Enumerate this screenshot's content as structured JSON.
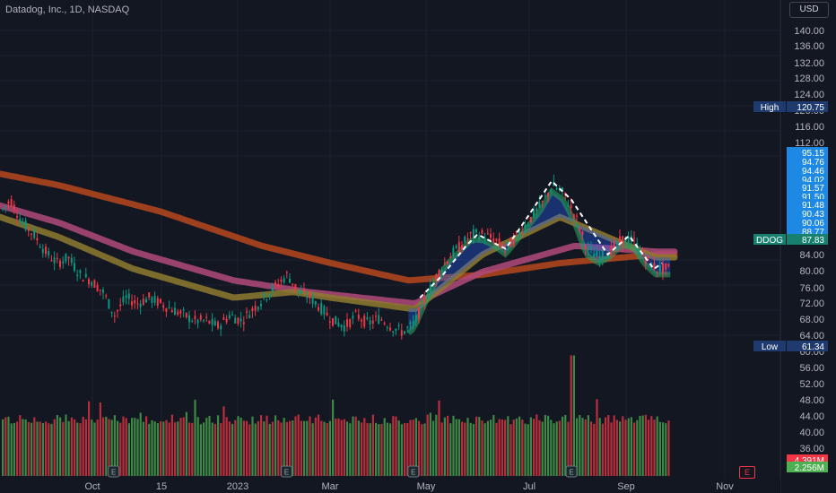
{
  "header": {
    "title": "Datadog, Inc., 1D, NASDAQ",
    "currency": "USD"
  },
  "colors": {
    "background": "#131722",
    "grid": "#1e222d",
    "axis_text": "#b2b5be",
    "up": "#089981",
    "down": "#f23645",
    "vol_up": "#4caf50",
    "vol_down": "#f23645",
    "ema_long": "#b7471d",
    "ema_mid": "#b04a7a",
    "ema_short": "#8e7a2f",
    "ribbon_bull": "#2a9d5c",
    "ribbon_bear": "#2962ff",
    "label_blue": "#1e88e5",
    "label_navy": "#1e3a6e",
    "label_teal": "#16816f"
  },
  "chart_data": {
    "type": "candlestick",
    "symbol": "DDOG",
    "interval": "1D",
    "exchange": "NASDAQ",
    "x_ticks": [
      "Oct",
      "15",
      "2023",
      "Mar",
      "May",
      "Jul",
      "Sep",
      "Nov"
    ],
    "y_ticks_price": [
      "140.00",
      "136.00",
      "132.00",
      "128.00",
      "124.00",
      "120.00",
      "116.00",
      "112.00",
      "84.00",
      "80.00",
      "76.00",
      "72.00",
      "68.00",
      "64.00",
      "60.00"
    ],
    "y_ticks_volume": [
      "56.00",
      "52.00",
      "48.00",
      "44.00",
      "40.00",
      "36.00"
    ],
    "ylim": [
      60,
      144
    ],
    "close_path": [
      [
        "2022-08-26",
        108
      ],
      [
        "2022-09-01",
        112
      ],
      [
        "2022-09-08",
        104
      ],
      [
        "2022-09-15",
        100
      ],
      [
        "2022-09-22",
        94
      ],
      [
        "2022-09-29",
        90
      ],
      [
        "2022-10-06",
        92
      ],
      [
        "2022-10-13",
        86
      ],
      [
        "2022-10-20",
        84
      ],
      [
        "2022-10-27",
        80
      ],
      [
        "2022-11-03",
        72
      ],
      [
        "2022-11-10",
        78
      ],
      [
        "2022-11-17",
        76
      ],
      [
        "2022-11-24",
        78
      ],
      [
        "2022-12-01",
        76
      ],
      [
        "2022-12-08",
        74
      ],
      [
        "2022-12-15",
        72
      ],
      [
        "2022-12-22",
        70
      ],
      [
        "2022-12-29",
        70
      ],
      [
        "2023-01-05",
        68
      ],
      [
        "2023-01-12",
        72
      ],
      [
        "2023-01-19",
        70
      ],
      [
        "2023-01-26",
        74
      ],
      [
        "2023-02-02",
        78
      ],
      [
        "2023-02-09",
        82
      ],
      [
        "2023-02-16",
        86
      ],
      [
        "2023-02-23",
        80
      ],
      [
        "2023-03-02",
        78
      ],
      [
        "2023-03-09",
        74
      ],
      [
        "2023-03-16",
        70
      ],
      [
        "2023-03-23",
        68
      ],
      [
        "2023-03-30",
        72
      ],
      [
        "2023-04-06",
        69
      ],
      [
        "2023-04-13",
        71
      ],
      [
        "2023-04-20",
        68
      ],
      [
        "2023-04-27",
        66
      ],
      [
        "2023-05-04",
        69
      ],
      [
        "2023-05-11",
        78
      ],
      [
        "2023-05-18",
        86
      ],
      [
        "2023-05-25",
        92
      ],
      [
        "2023-06-01",
        96
      ],
      [
        "2023-06-08",
        100
      ],
      [
        "2023-06-15",
        100
      ],
      [
        "2023-06-22",
        98
      ],
      [
        "2023-06-29",
        95
      ],
      [
        "2023-07-06",
        100
      ],
      [
        "2023-07-13",
        105
      ],
      [
        "2023-07-20",
        110
      ],
      [
        "2023-07-27",
        117
      ],
      [
        "2023-08-03",
        114
      ],
      [
        "2023-08-10",
        106
      ],
      [
        "2023-08-17",
        95
      ],
      [
        "2023-08-24",
        92
      ],
      [
        "2023-08-31",
        94
      ],
      [
        "2023-09-07",
        98
      ],
      [
        "2023-09-14",
        98
      ],
      [
        "2023-09-21",
        92
      ],
      [
        "2023-09-28",
        88
      ]
    ],
    "ema_lines": [
      {
        "role": "long",
        "values": [
          [
            "2022-08-26",
            121
          ],
          [
            "2022-10-01",
            117
          ],
          [
            "2022-12-01",
            108
          ],
          [
            "2023-02-01",
            96
          ],
          [
            "2023-03-15",
            90
          ],
          [
            "2023-05-01",
            84
          ],
          [
            "2023-06-15",
            86
          ],
          [
            "2023-08-01",
            90
          ],
          [
            "2023-09-28",
            93
          ]
        ]
      },
      {
        "role": "mid",
        "values": [
          [
            "2022-08-26",
            110
          ],
          [
            "2022-10-01",
            104
          ],
          [
            "2022-11-15",
            94
          ],
          [
            "2023-01-15",
            84
          ],
          [
            "2023-03-01",
            80
          ],
          [
            "2023-05-05",
            76
          ],
          [
            "2023-06-15",
            87
          ],
          [
            "2023-08-10",
            96
          ],
          [
            "2023-09-28",
            94
          ]
        ]
      },
      {
        "role": "short",
        "values": [
          [
            "2022-08-26",
            106
          ],
          [
            "2022-10-01",
            99
          ],
          [
            "2022-11-15",
            88
          ],
          [
            "2023-01-15",
            78
          ],
          [
            "2023-02-20",
            80
          ],
          [
            "2023-03-15",
            78
          ],
          [
            "2023-05-05",
            74
          ],
          [
            "2023-06-15",
            93
          ],
          [
            "2023-08-01",
            106
          ],
          [
            "2023-09-28",
            92
          ]
        ]
      }
    ],
    "volume_max_label": 58,
    "right_labels": [
      {
        "text": "High",
        "value": "120.75"
      },
      {
        "text": "",
        "value": "95.15"
      },
      {
        "text": "",
        "value": "94.76"
      },
      {
        "text": "",
        "value": "94.46"
      },
      {
        "text": "",
        "value": "94.02"
      },
      {
        "text": "",
        "value": "91.57"
      },
      {
        "text": "",
        "value": "91.50"
      },
      {
        "text": "",
        "value": "91.48"
      },
      {
        "text": "",
        "value": "90.43"
      },
      {
        "text": "",
        "value": "90.06"
      },
      {
        "text": "",
        "value": "88.77"
      },
      {
        "text": "DDOG",
        "value": "87.83"
      },
      {
        "text": "Low",
        "value": "61.34"
      },
      {
        "text": "",
        "value": "4.391M"
      },
      {
        "text": "",
        "value": "2.256M"
      }
    ],
    "earnings_marker": "E"
  }
}
